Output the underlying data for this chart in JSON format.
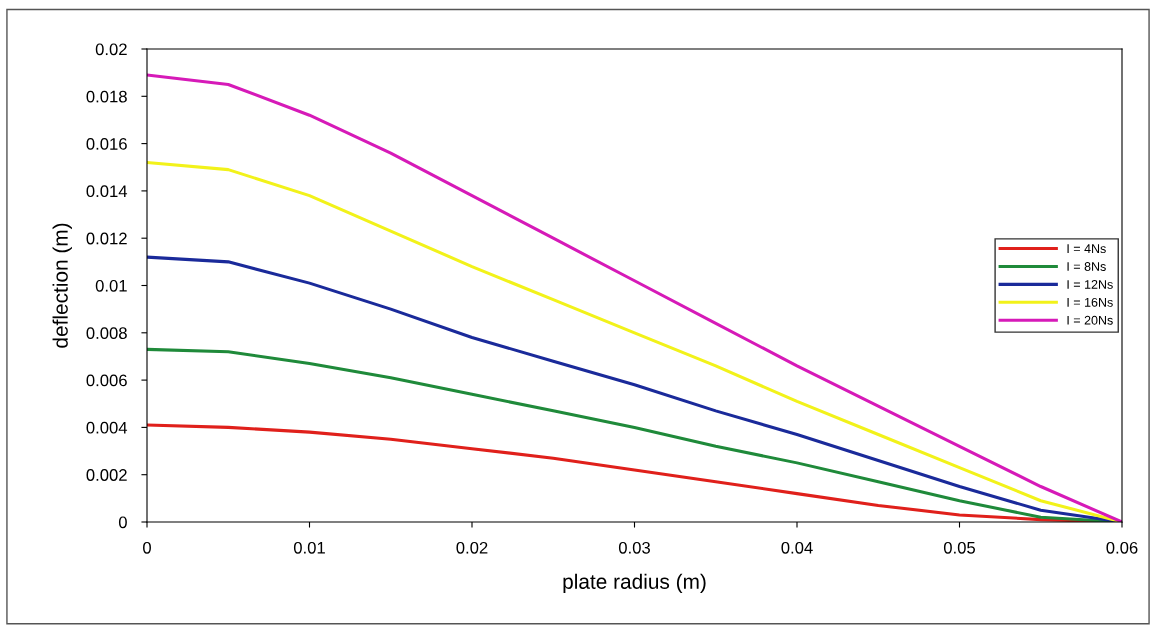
{
  "chart_data": {
    "type": "line",
    "xlabel": "plate radius (m)",
    "ylabel": "deflection (m)",
    "x": [
      0,
      0.005,
      0.01,
      0.015,
      0.02,
      0.025,
      0.03,
      0.035,
      0.04,
      0.045,
      0.05,
      0.055,
      0.06
    ],
    "series": [
      {
        "name": "I = 4Ns",
        "color": "#e0201b",
        "values": [
          0.0041,
          0.004,
          0.0038,
          0.0035,
          0.0031,
          0.0027,
          0.0022,
          0.0017,
          0.0012,
          0.0007,
          0.0003,
          0.0001,
          0
        ]
      },
      {
        "name": "I = 8Ns",
        "color": "#1f8a3a",
        "values": [
          0.0073,
          0.0072,
          0.0067,
          0.0061,
          0.0054,
          0.0047,
          0.004,
          0.0032,
          0.0025,
          0.0017,
          0.0009,
          0.0002,
          0
        ]
      },
      {
        "name": "I = 12Ns",
        "color": "#1a2a9a",
        "values": [
          0.0112,
          0.011,
          0.0101,
          0.009,
          0.0078,
          0.0068,
          0.0058,
          0.0047,
          0.0037,
          0.0026,
          0.0015,
          0.0005,
          0
        ]
      },
      {
        "name": "I = 16Ns",
        "color": "#f2f21a",
        "values": [
          0.0152,
          0.0149,
          0.0138,
          0.0123,
          0.0108,
          0.0094,
          0.008,
          0.0066,
          0.0051,
          0.0037,
          0.0023,
          0.0009,
          0
        ]
      },
      {
        "name": "I = 20Ns",
        "color": "#d61ab8",
        "values": [
          0.0189,
          0.0185,
          0.0172,
          0.0156,
          0.0138,
          0.012,
          0.0102,
          0.0084,
          0.0066,
          0.0049,
          0.0032,
          0.0015,
          0
        ]
      }
    ],
    "xlim": [
      0,
      0.06
    ],
    "xticks": [
      0,
      0.01,
      0.02,
      0.03,
      0.04,
      0.05,
      0.06
    ],
    "ylim": [
      0,
      0.02
    ],
    "yticks": [
      0,
      0.002,
      0.004,
      0.006,
      0.008,
      0.01,
      0.012,
      0.014,
      0.016,
      0.018,
      0.02
    ],
    "grid": false,
    "legend": "center right",
    "marker": "none",
    "line_style": "solid"
  }
}
